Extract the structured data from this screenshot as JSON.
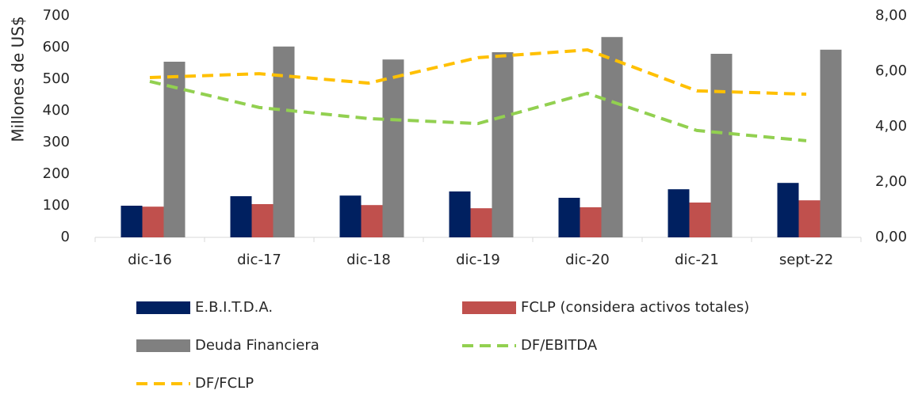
{
  "chart_data": {
    "type": "bar-line",
    "ylabel": "Millones de US$",
    "categories": [
      "dic-16",
      "dic-17",
      "dic-18",
      "dic-19",
      "dic-20",
      "dic-21",
      "sept-22"
    ],
    "series": [
      {
        "name": "E.B.I.T.D.A.",
        "type": "bar",
        "color": "#002060",
        "values": [
          100,
          130,
          132,
          145,
          125,
          152,
          172
        ]
      },
      {
        "name": "FCLP (considera activos totales)",
        "type": "bar",
        "color": "#c0504d",
        "values": [
          97,
          105,
          102,
          92,
          95,
          110,
          117
        ]
      },
      {
        "name": "Deuda Financiera",
        "type": "bar",
        "color": "#808080",
        "values": [
          555,
          603,
          562,
          585,
          633,
          580,
          593
        ]
      },
      {
        "name": "DF/EBITDA",
        "type": "line",
        "axis": "y2",
        "color": "#92d050",
        "values": [
          5.63,
          4.69,
          4.29,
          4.11,
          5.2,
          3.86,
          3.49
        ]
      },
      {
        "name": "DF/FCLP",
        "type": "line",
        "axis": "y2",
        "color": "#ffc000",
        "values": [
          5.77,
          5.91,
          5.57,
          6.49,
          6.77,
          5.29,
          5.17
        ]
      }
    ],
    "ylim": [
      0,
      700
    ],
    "yticks": [
      0,
      100,
      200,
      300,
      400,
      500,
      600,
      700
    ],
    "y2lim": [
      0,
      8
    ],
    "y2ticks": [
      {
        "value": 0,
        "label": "0,00"
      },
      {
        "value": 2,
        "label": "2,00"
      },
      {
        "value": 4,
        "label": "4,00"
      },
      {
        "value": 6,
        "label": "6,00"
      },
      {
        "value": 8,
        "label": "8,00"
      }
    ],
    "grid": false
  }
}
